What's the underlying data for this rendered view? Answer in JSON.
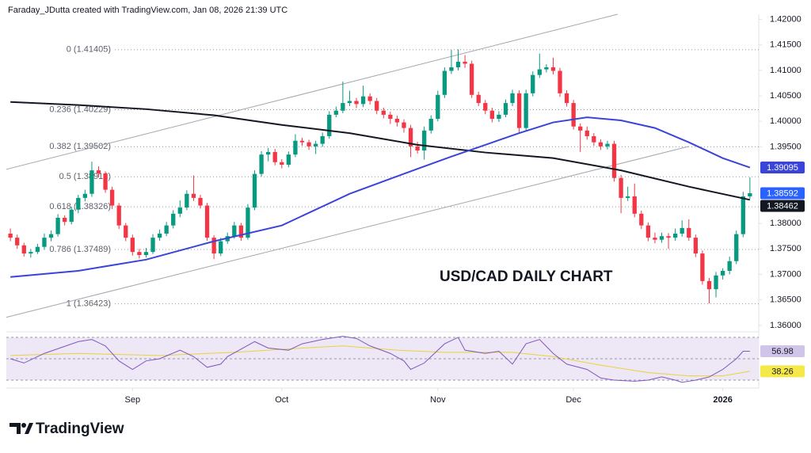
{
  "header": {
    "title": "Faraday_JDutta created with TradingView.com, Jan 08, 2026 21:39 UTC",
    "brand": "TradingView"
  },
  "chart_data": {
    "type": "candlestick",
    "annotation": "USD/CAD DAILY CHART",
    "xlim": [
      -0.6,
      110.3
    ],
    "xticks": [
      {
        "value": 18,
        "label": "Sep"
      },
      {
        "value": 40,
        "label": "Oct"
      },
      {
        "value": 63,
        "label": "Nov"
      },
      {
        "value": 83,
        "label": "Dec"
      },
      {
        "value": 105,
        "label": "2026"
      }
    ],
    "ylim": [
      1.3589,
      1.421
    ],
    "yticks": [
      {
        "value": 1.36,
        "label": "1.36000"
      },
      {
        "value": 1.365,
        "label": "1.36500"
      },
      {
        "value": 1.37,
        "label": "1.37000"
      },
      {
        "value": 1.375,
        "label": "1.37500"
      },
      {
        "value": 1.38,
        "label": "1.38000"
      },
      {
        "value": 1.395,
        "label": "1.39500"
      },
      {
        "value": 1.4,
        "label": "1.40000"
      },
      {
        "value": 1.405,
        "label": "1.40500"
      },
      {
        "value": 1.41,
        "label": "1.41000"
      },
      {
        "value": 1.415,
        "label": "1.41500"
      },
      {
        "value": 1.42,
        "label": "1.42000"
      }
    ],
    "up_color": "#089981",
    "down_color": "#f23645",
    "last_tag_color": "#2962ff",
    "candles": [
      [
        1.378,
        1.379,
        1.3765,
        1.3772
      ],
      [
        1.3772,
        1.3778,
        1.375,
        1.3757
      ],
      [
        1.3757,
        1.3762,
        1.3735,
        1.3741
      ],
      [
        1.3741,
        1.375,
        1.3733,
        1.3744
      ],
      [
        1.3744,
        1.376,
        1.374,
        1.3754
      ],
      [
        1.3754,
        1.378,
        1.3748,
        1.3772
      ],
      [
        1.3772,
        1.3786,
        1.3765,
        1.3779
      ],
      [
        1.3779,
        1.3818,
        1.3774,
        1.3811
      ],
      [
        1.3811,
        1.3816,
        1.3796,
        1.3803
      ],
      [
        1.3803,
        1.3833,
        1.3798,
        1.3827
      ],
      [
        1.3827,
        1.3856,
        1.382,
        1.385
      ],
      [
        1.385,
        1.3866,
        1.3843,
        1.3858
      ],
      [
        1.3858,
        1.3921,
        1.3852,
        1.3904
      ],
      [
        1.3904,
        1.3912,
        1.389,
        1.3898
      ],
      [
        1.3898,
        1.3902,
        1.386,
        1.3866
      ],
      [
        1.3866,
        1.3872,
        1.3828,
        1.3835
      ],
      [
        1.3835,
        1.384,
        1.3789,
        1.3796
      ],
      [
        1.3796,
        1.3801,
        1.3765,
        1.3772
      ],
      [
        1.3772,
        1.3778,
        1.3737,
        1.3744
      ],
      [
        1.3744,
        1.375,
        1.3731,
        1.3738
      ],
      [
        1.3738,
        1.3752,
        1.3733,
        1.3744
      ],
      [
        1.3744,
        1.3779,
        1.374,
        1.3772
      ],
      [
        1.3772,
        1.3788,
        1.3766,
        1.378
      ],
      [
        1.378,
        1.3803,
        1.3775,
        1.3796
      ],
      [
        1.3796,
        1.3826,
        1.379,
        1.3819
      ],
      [
        1.3819,
        1.3845,
        1.3812,
        1.3831
      ],
      [
        1.3831,
        1.3865,
        1.3826,
        1.3858
      ],
      [
        1.3858,
        1.3894,
        1.3844,
        1.385
      ],
      [
        1.385,
        1.3856,
        1.3829,
        1.3835
      ],
      [
        1.3835,
        1.384,
        1.3766,
        1.3772
      ],
      [
        1.3772,
        1.3777,
        1.373,
        1.3741
      ],
      [
        1.3741,
        1.3772,
        1.3736,
        1.3765
      ],
      [
        1.3765,
        1.3782,
        1.376,
        1.3775
      ],
      [
        1.3775,
        1.3803,
        1.377,
        1.3796
      ],
      [
        1.3796,
        1.3801,
        1.3766,
        1.3772
      ],
      [
        1.3772,
        1.3838,
        1.3768,
        1.3831
      ],
      [
        1.3831,
        1.3904,
        1.3826,
        1.3897
      ],
      [
        1.3897,
        1.3942,
        1.3892,
        1.3935
      ],
      [
        1.3935,
        1.3948,
        1.3922,
        1.394
      ],
      [
        1.394,
        1.3946,
        1.3914,
        1.392
      ],
      [
        1.392,
        1.3926,
        1.3908,
        1.3915
      ],
      [
        1.3915,
        1.3941,
        1.391,
        1.3935
      ],
      [
        1.3935,
        1.3975,
        1.393,
        1.3962
      ],
      [
        1.3962,
        1.3968,
        1.3952,
        1.3959
      ],
      [
        1.3959,
        1.3964,
        1.3944,
        1.3951
      ],
      [
        1.3951,
        1.3962,
        1.3936,
        1.3956
      ],
      [
        1.3956,
        1.3978,
        1.395,
        1.3971
      ],
      [
        1.3971,
        1.402,
        1.3966,
        1.4013
      ],
      [
        1.4013,
        1.4029,
        1.4008,
        1.4021
      ],
      [
        1.4021,
        1.4078,
        1.4016,
        1.4036
      ],
      [
        1.4036,
        1.406,
        1.403,
        1.404
      ],
      [
        1.404,
        1.4046,
        1.4026,
        1.4034
      ],
      [
        1.4034,
        1.407,
        1.4028,
        1.4049
      ],
      [
        1.4049,
        1.4055,
        1.4033,
        1.404
      ],
      [
        1.404,
        1.4046,
        1.4014,
        1.4021
      ],
      [
        1.4021,
        1.4027,
        1.4006,
        1.4013
      ],
      [
        1.4013,
        1.4019,
        1.3995,
        1.4005
      ],
      [
        1.4005,
        1.4011,
        1.399,
        1.3998
      ],
      [
        1.3998,
        1.4004,
        1.3978,
        1.3987
      ],
      [
        1.3987,
        1.3993,
        1.393,
        1.3951
      ],
      [
        1.3951,
        1.396,
        1.3937,
        1.3943
      ],
      [
        1.3943,
        1.399,
        1.3925,
        1.3982
      ],
      [
        1.3982,
        1.4012,
        1.3976,
        1.4005
      ],
      [
        1.4005,
        1.406,
        1.4,
        1.4052
      ],
      [
        1.4052,
        1.4106,
        1.4046,
        1.4099
      ],
      [
        1.4099,
        1.414,
        1.4093,
        1.4106
      ],
      [
        1.4106,
        1.4141,
        1.41,
        1.4117
      ],
      [
        1.4117,
        1.413,
        1.4105,
        1.4113
      ],
      [
        1.4113,
        1.4119,
        1.4046,
        1.4052
      ],
      [
        1.4052,
        1.4058,
        1.403,
        1.4036
      ],
      [
        1.4036,
        1.4042,
        1.4014,
        1.4021
      ],
      [
        1.4021,
        1.4027,
        1.3998,
        1.4005
      ],
      [
        1.4005,
        1.402,
        1.3999,
        1.4013
      ],
      [
        1.4013,
        1.4043,
        1.4008,
        1.4036
      ],
      [
        1.4036,
        1.4062,
        1.403,
        1.4055
      ],
      [
        1.4055,
        1.4061,
        1.3978,
        1.3987
      ],
      [
        1.3987,
        1.4062,
        1.3981,
        1.4055
      ],
      [
        1.4055,
        1.4098,
        1.4049,
        1.4091
      ],
      [
        1.4091,
        1.4133,
        1.4085,
        1.4102
      ],
      [
        1.4102,
        1.4112,
        1.4096,
        1.4106
      ],
      [
        1.4106,
        1.4125,
        1.4092,
        1.4099
      ],
      [
        1.4099,
        1.4105,
        1.4048,
        1.4055
      ],
      [
        1.4055,
        1.4061,
        1.4029,
        1.4036
      ],
      [
        1.4036,
        1.4042,
        1.3984,
        1.399
      ],
      [
        1.399,
        1.3996,
        1.394,
        1.3982
      ],
      [
        1.3982,
        1.399,
        1.3964,
        1.3971
      ],
      [
        1.3971,
        1.3977,
        1.3952,
        1.3959
      ],
      [
        1.3959,
        1.3965,
        1.3944,
        1.3951
      ],
      [
        1.3951,
        1.3962,
        1.3945,
        1.3956
      ],
      [
        1.3956,
        1.3962,
        1.3882,
        1.3889
      ],
      [
        1.3889,
        1.3895,
        1.382,
        1.385
      ],
      [
        1.385,
        1.3872,
        1.3844,
        1.3853
      ],
      [
        1.3853,
        1.3878,
        1.3812,
        1.3819
      ],
      [
        1.3819,
        1.3825,
        1.3789,
        1.3796
      ],
      [
        1.3796,
        1.3802,
        1.3765,
        1.3772
      ],
      [
        1.3772,
        1.3782,
        1.3761,
        1.3768
      ],
      [
        1.3768,
        1.3782,
        1.3762,
        1.3775
      ],
      [
        1.3775,
        1.3781,
        1.375,
        1.3772
      ],
      [
        1.3772,
        1.379,
        1.3766,
        1.378
      ],
      [
        1.378,
        1.3806,
        1.3774,
        1.3791
      ],
      [
        1.3791,
        1.3808,
        1.3766,
        1.3772
      ],
      [
        1.3772,
        1.3778,
        1.3734,
        1.3741
      ],
      [
        1.3741,
        1.3747,
        1.368,
        1.3687
      ],
      [
        1.3687,
        1.3693,
        1.3643,
        1.3671
      ],
      [
        1.3671,
        1.3705,
        1.3655,
        1.3698
      ],
      [
        1.3698,
        1.3712,
        1.369,
        1.3707
      ],
      [
        1.3707,
        1.3735,
        1.37,
        1.3726
      ],
      [
        1.3726,
        1.3786,
        1.372,
        1.3779
      ],
      [
        1.3779,
        1.3862,
        1.3773,
        1.3853
      ],
      [
        1.3853,
        1.389,
        1.3848,
        1.38592
      ]
    ],
    "lines": [
      {
        "color": "#131722",
        "x": [
          0,
          10,
          20,
          30,
          40,
          50,
          60,
          70,
          80,
          90,
          100,
          109
        ],
        "values": [
          1.4038,
          1.4032,
          1.4024,
          1.4012,
          1.3993,
          1.3977,
          1.3954,
          1.3939,
          1.3928,
          1.3904,
          1.3872,
          1.38462
        ]
      },
      {
        "color": "#3a44d8",
        "x": [
          0,
          10,
          20,
          30,
          40,
          50,
          60,
          65,
          70,
          75,
          80,
          85,
          90,
          95,
          100,
          105,
          109
        ],
        "values": [
          1.3695,
          1.3707,
          1.3729,
          1.3765,
          1.3796,
          1.3858,
          1.3907,
          1.3931,
          1.3954,
          1.3977,
          1.3998,
          1.4008,
          1.4002,
          1.3987,
          1.3959,
          1.3928,
          1.39095
        ]
      }
    ],
    "trendlines": [
      {
        "color": "#a3a6af",
        "x": [
          -0.6,
          89.5
        ],
        "values": [
          1.3906,
          1.421
        ]
      },
      {
        "color": "#a3a6af",
        "x": [
          -0.6,
          100
        ],
        "values": [
          1.3616,
          1.3951
        ]
      }
    ],
    "fib_color": "#9598a1",
    "fib_levels": [
      {
        "value": 1.41405,
        "label": "0 (1.41405)"
      },
      {
        "value": 1.40229,
        "label": "0.236 (1.40229)"
      },
      {
        "value": 1.39502,
        "label": "0.382 (1.39502)"
      },
      {
        "value": 1.38914,
        "label": "0.5 (1.38914)"
      },
      {
        "value": 1.38326,
        "label": "0.618 (1.38326)"
      },
      {
        "value": 1.37489,
        "label": "0.786 (1.37489)"
      },
      {
        "value": 1.36423,
        "label": "1 (1.36423)"
      }
    ],
    "rsi": {
      "ylim": [
        26.3,
        72.2
      ],
      "levels": [
        30,
        50,
        70
      ],
      "band_color": "#ede7f6",
      "lines": [
        {
          "color": "#7e57c2",
          "tag_color": "#d1c4e9",
          "tag_text": "#131722",
          "x": [
            0,
            2,
            5,
            10,
            12,
            14,
            16,
            18,
            20,
            22,
            25,
            27,
            29,
            31,
            32,
            36,
            38,
            41,
            43,
            46,
            49,
            51,
            53,
            56,
            58,
            59,
            61,
            64,
            66,
            67,
            70,
            72,
            74,
            76,
            78,
            80,
            82,
            85,
            87,
            89,
            92,
            94,
            96,
            98,
            99,
            101,
            103,
            105,
            107,
            108,
            109
          ],
          "values": [
            50,
            46,
            55,
            66,
            68,
            62,
            48,
            40,
            48,
            50,
            58,
            52,
            42,
            45,
            52,
            66,
            60,
            58,
            64,
            68,
            71,
            69,
            62,
            55,
            48,
            40,
            46,
            64,
            70,
            58,
            55,
            57,
            45,
            64,
            68,
            55,
            45,
            40,
            32,
            30,
            29,
            30,
            33,
            30,
            28,
            30,
            33,
            40,
            50,
            57,
            56.98
          ]
        },
        {
          "color": "#e8d43a",
          "tag_color": "#f5e94a",
          "tag_text": "#131722",
          "x": [
            0,
            10,
            22,
            33,
            43,
            49,
            57,
            64,
            74,
            80,
            87,
            94,
            100,
            105,
            109
          ],
          "values": [
            53,
            55,
            53,
            56,
            60,
            62,
            58,
            56,
            56,
            52,
            44,
            37,
            34,
            34,
            38.26
          ]
        }
      ]
    }
  }
}
